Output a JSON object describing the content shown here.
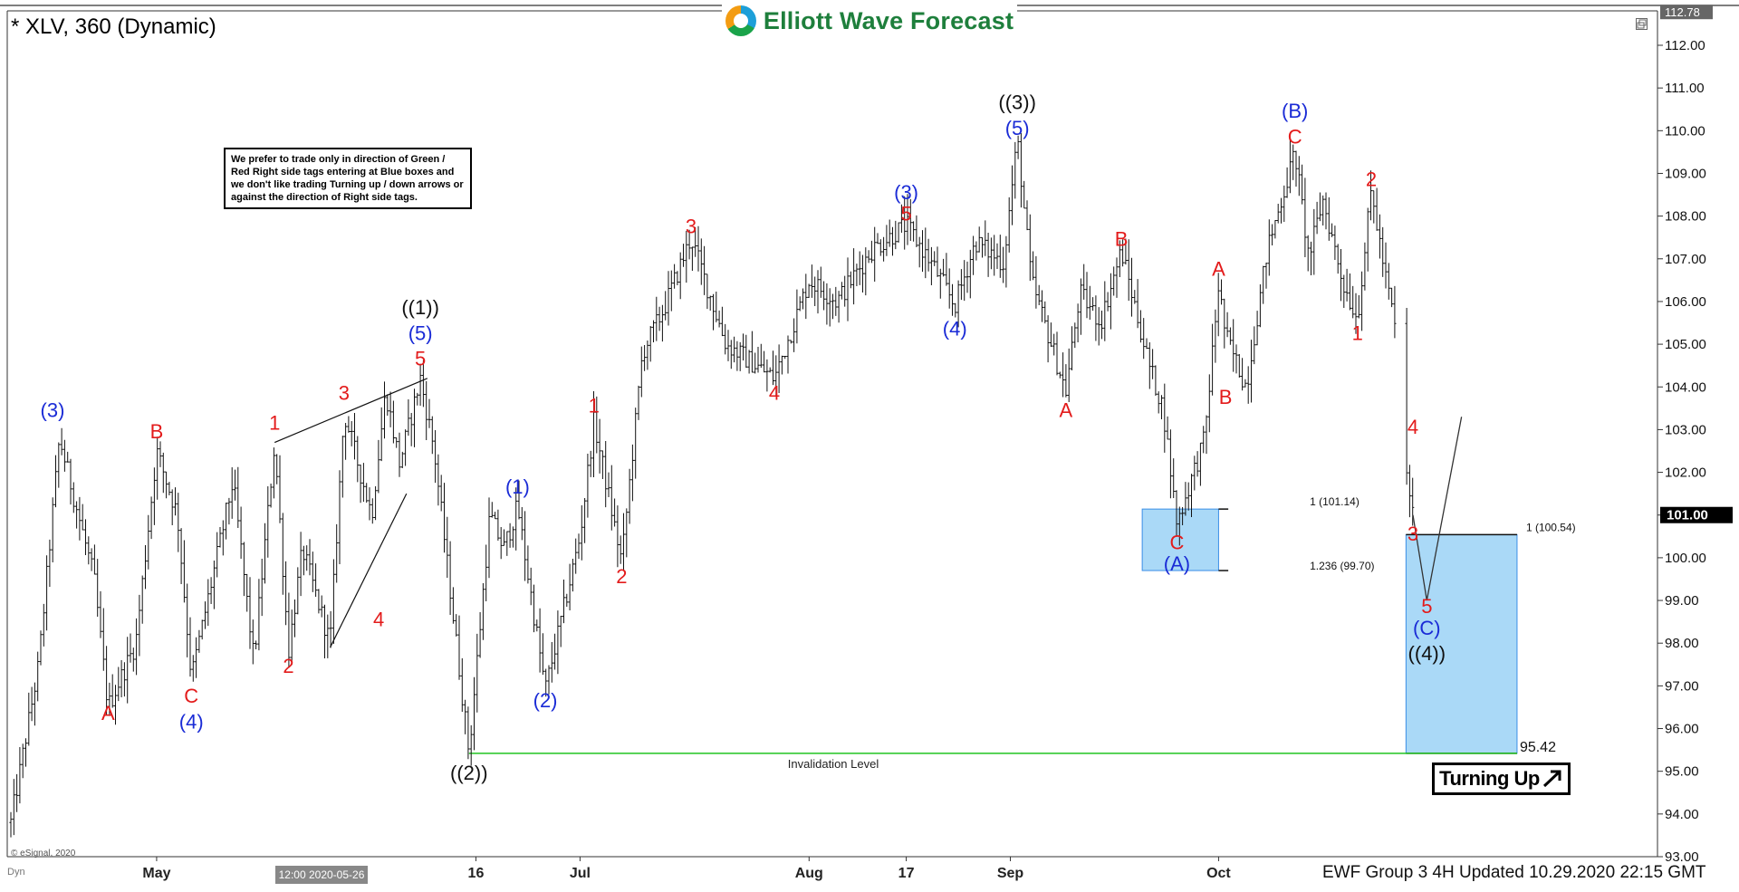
{
  "header": {
    "symbol_label": "* XLV, 360 (Dynamic)",
    "logo_text": "Elliott Wave Forecast",
    "footer_text": "EWF Group 3 4H Updated 10.29.2020 22:15 GMT",
    "esignal_credit": "© eSignal, 2020",
    "dyn_label": "Dyn",
    "crosshair_time": "12:00 2020-05-26",
    "note": "We prefer to trade only in direction of Green / Red Right side tags entering at Blue boxes and we don't like trading Turning up / down arrows or against the direction of Right side tags.",
    "turning_label": "Turning Up"
  },
  "chart_data": {
    "type": "ohlc",
    "title": "",
    "ylim": [
      93,
      113
    ],
    "y_ticks": [
      93,
      94,
      95,
      96,
      97,
      98,
      99,
      100,
      101,
      102,
      103,
      104,
      105,
      106,
      107,
      108,
      109,
      110,
      111,
      112
    ],
    "x_labels": [
      "May",
      "16",
      "Jul",
      "Aug",
      "17",
      "Sep",
      "Oct"
    ],
    "current_price": "101.00",
    "top_price": "112.78",
    "price_path": [
      [
        "Apr 10",
        93.8
      ],
      [
        "Apr 14",
        97.5
      ],
      [
        "Apr 17",
        102.8
      ],
      [
        "Apr 22",
        99.5
      ],
      [
        "Apr 24",
        96.5
      ],
      [
        "Apr 28",
        98.0
      ],
      [
        "May 1",
        102.5
      ],
      [
        "May 4",
        101.0
      ],
      [
        "May 6",
        97.2
      ],
      [
        "May 12",
        101.8
      ],
      [
        "May 15",
        97.6
      ],
      [
        "May 18",
        102.7
      ],
      [
        "May 20",
        97.8
      ],
      [
        "May 22",
        100.2
      ],
      [
        "May 26",
        98.0
      ],
      [
        "May 28",
        103.4
      ],
      [
        "Jun 1",
        101.0
      ],
      [
        "Jun 3",
        103.9
      ],
      [
        "Jun 5",
        102.2
      ],
      [
        "Jun 8",
        104.2
      ],
      [
        "Jun 10",
        102.5
      ],
      [
        "Jun 15",
        95.42
      ],
      [
        "Jun 18",
        101.0
      ],
      [
        "Jun 20",
        100.2
      ],
      [
        "Jun 22",
        101.2
      ],
      [
        "Jun 26",
        96.9
      ],
      [
        "Jul 1",
        100.5
      ],
      [
        "Jul 3",
        103.2
      ],
      [
        "Jul 7",
        99.9
      ],
      [
        "Jul 10",
        104.8
      ],
      [
        "Jul 13",
        105.8
      ],
      [
        "Jul 17",
        107.5
      ],
      [
        "Jul 22",
        105.0
      ],
      [
        "Jul 29",
        104.2
      ],
      [
        "Aug 3",
        106.5
      ],
      [
        "Aug 7",
        106.0
      ],
      [
        "Aug 12",
        107.2
      ],
      [
        "Aug 17",
        107.8
      ],
      [
        "Aug 21",
        106.8
      ],
      [
        "Aug 24",
        105.9
      ],
      [
        "Aug 27",
        107.4
      ],
      [
        "Aug 31",
        106.9
      ],
      [
        "Sep 2",
        109.8
      ],
      [
        "Sep 4",
        106.5
      ],
      [
        "Sep 9",
        103.9
      ],
      [
        "Sep 11",
        106.2
      ],
      [
        "Sep 14",
        105.5
      ],
      [
        "Sep 17",
        107.2
      ],
      [
        "Sep 21",
        104.5
      ],
      [
        "Sep 23",
        103.5
      ],
      [
        "Sep 25",
        100.8
      ],
      [
        "Sep 29",
        102.8
      ],
      [
        "Oct 1",
        106.4
      ],
      [
        "Oct 2",
        105.2
      ],
      [
        "Oct 5",
        104.0
      ],
      [
        "Oct 8",
        107.2
      ],
      [
        "Oct 12",
        109.5
      ],
      [
        "Oct 14",
        107.0
      ],
      [
        "Oct 16",
        108.4
      ],
      [
        "Oct 19",
        106.4
      ],
      [
        "Oct 21",
        105.6
      ],
      [
        "Oct 23",
        108.6
      ],
      [
        "Oct 25",
        106.6
      ],
      [
        "Oct 26",
        105.8
      ],
      [
        "Oct 27",
        104.7
      ],
      [
        "Oct 28",
        102.0
      ],
      [
        "Oct 29",
        101.0
      ]
    ],
    "wave_labels": [
      {
        "text": "(3)",
        "date": "Apr 16",
        "price": 103.3,
        "color": "#1a2bd6"
      },
      {
        "text": "A",
        "date": "Apr 24",
        "price": 96.2,
        "color": "#e31b1b"
      },
      {
        "text": "B",
        "date": "May 1",
        "price": 102.8,
        "color": "#e31b1b"
      },
      {
        "text": "C",
        "date": "May 6",
        "price": 96.6,
        "color": "#e31b1b"
      },
      {
        "text": "(4)",
        "date": "May 6",
        "price": 96.0,
        "color": "#1a2bd6"
      },
      {
        "text": "1",
        "date": "May 18",
        "price": 103.0,
        "color": "#e31b1b"
      },
      {
        "text": "2",
        "date": "May 20",
        "price": 97.3,
        "color": "#e31b1b"
      },
      {
        "text": "3",
        "date": "May 28",
        "price": 103.7,
        "color": "#e31b1b"
      },
      {
        "text": "4",
        "date": "Jun 2",
        "price": 98.4,
        "color": "#e31b1b"
      },
      {
        "text": "5",
        "date": "Jun 8",
        "price": 104.5,
        "color": "#e31b1b"
      },
      {
        "text": "(5)",
        "date": "Jun 8",
        "price": 105.1,
        "color": "#1a2bd6"
      },
      {
        "text": "((1))",
        "date": "Jun 8",
        "price": 105.7,
        "color": "#111111"
      },
      {
        "text": "((2))",
        "date": "Jun 15",
        "price": 94.8,
        "color": "#111111"
      },
      {
        "text": "(1)",
        "date": "Jun 22",
        "price": 101.5,
        "color": "#1a2bd6"
      },
      {
        "text": "(2)",
        "date": "Jun 26",
        "price": 96.5,
        "color": "#1a2bd6"
      },
      {
        "text": "1",
        "date": "Jul 3",
        "price": 103.4,
        "color": "#e31b1b"
      },
      {
        "text": "2",
        "date": "Jul 7",
        "price": 99.4,
        "color": "#e31b1b"
      },
      {
        "text": "3",
        "date": "Jul 17",
        "price": 107.6,
        "color": "#e31b1b"
      },
      {
        "text": "4",
        "date": "Jul 29",
        "price": 103.7,
        "color": "#e31b1b"
      },
      {
        "text": "5",
        "date": "Aug 17",
        "price": 107.9,
        "color": "#e31b1b"
      },
      {
        "text": "(3)",
        "date": "Aug 17",
        "price": 108.4,
        "color": "#1a2bd6"
      },
      {
        "text": "(4)",
        "date": "Aug 24",
        "price": 105.2,
        "color": "#1a2bd6"
      },
      {
        "text": "(5)",
        "date": "Sep 2",
        "price": 109.9,
        "color": "#1a2bd6"
      },
      {
        "text": "((3))",
        "date": "Sep 2",
        "price": 110.5,
        "color": "#111111"
      },
      {
        "text": "A",
        "date": "Sep 9",
        "price": 103.3,
        "color": "#e31b1b"
      },
      {
        "text": "B",
        "date": "Sep 17",
        "price": 107.3,
        "color": "#e31b1b"
      },
      {
        "text": "C",
        "date": "Sep 25",
        "price": 100.2,
        "color": "#e31b1b"
      },
      {
        "text": "(A)",
        "date": "Sep 25",
        "price": 99.7,
        "color": "#1a2bd6"
      },
      {
        "text": "A",
        "date": "Oct 1",
        "price": 106.6,
        "color": "#e31b1b"
      },
      {
        "text": "B",
        "date": "Oct 2",
        "price": 103.6,
        "color": "#e31b1b"
      },
      {
        "text": "C",
        "date": "Oct 12",
        "price": 109.7,
        "color": "#e31b1b"
      },
      {
        "text": "(B)",
        "date": "Oct 12",
        "price": 110.3,
        "color": "#1a2bd6"
      },
      {
        "text": "1",
        "date": "Oct 21",
        "price": 105.1,
        "color": "#e31b1b"
      },
      {
        "text": "2",
        "date": "Oct 23",
        "price": 108.7,
        "color": "#e31b1b"
      },
      {
        "text": "3",
        "date": "Oct 29",
        "price": 100.4,
        "color": "#e31b1b"
      },
      {
        "text": "4",
        "date": "Oct 29",
        "price": 102.9,
        "color": "#e31b1b"
      },
      {
        "text": "5",
        "date": "Oct 31",
        "price": 98.7,
        "color": "#e31b1b"
      },
      {
        "text": "(C)",
        "date": "Oct 31",
        "price": 98.2,
        "color": "#1a2bd6"
      },
      {
        "text": "((4))",
        "date": "Oct 31",
        "price": 97.6,
        "color": "#111111"
      }
    ],
    "blue_boxes": [
      {
        "from": "Sep 20",
        "to": "Oct 1",
        "top": 101.14,
        "bottom": 99.7,
        "top_label": "1 (101.14)",
        "bottom_label": "1.236 (99.70)"
      },
      {
        "from": "Oct 28",
        "to": "Nov 13",
        "top": 100.54,
        "bottom": 95.42,
        "top_label": "1 (100.54)",
        "bottom_label": "95.42"
      }
    ],
    "invalidation": {
      "price": 95.42,
      "from": "Jun 15",
      "to": "Nov 13",
      "label": "Invalidation Level"
    },
    "projection": [
      [
        "Oct 29",
        101.0
      ],
      [
        "Oct 31",
        99.0
      ],
      [
        "Nov 5",
        103.3
      ]
    ],
    "channel_lines": [
      [
        [
          "May 18",
          102.7
        ],
        [
          "Jun 9",
          104.2
        ]
      ],
      [
        [
          "May 26",
          97.9
        ],
        [
          "Jun 6",
          101.5
        ]
      ]
    ],
    "colors": {
      "wave_red": "#e31b1b",
      "wave_blue": "#1a2bd6",
      "wave_black": "#111111",
      "box_fill": "#aad9f7",
      "box_edge": "#3a8ee6",
      "invalidation": "#21c421"
    }
  }
}
